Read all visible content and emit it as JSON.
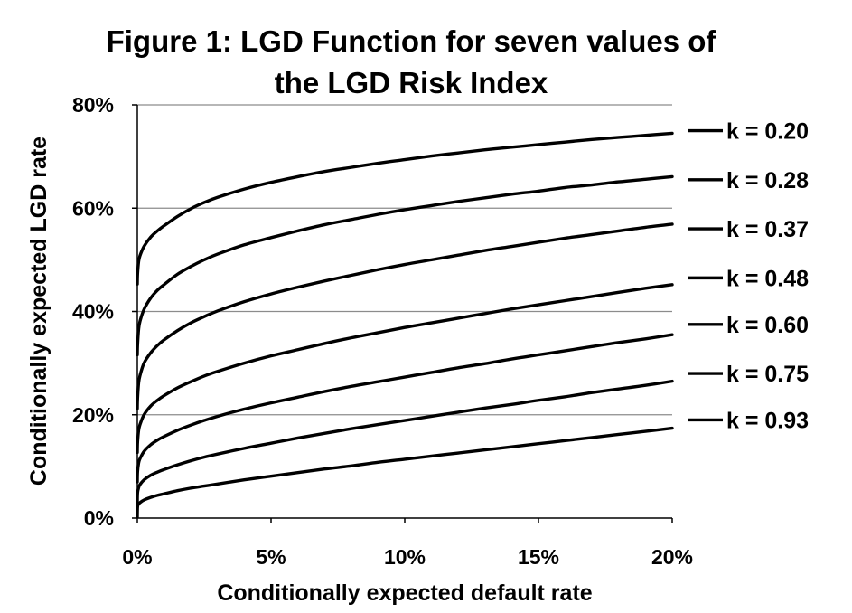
{
  "chart_data": {
    "type": "line",
    "title_lines": [
      "Figure 1: LGD Function for seven values of",
      "the LGD Risk Index"
    ],
    "xlabel": "Conditionally expected default rate",
    "ylabel": "Conditionally expected LGD rate",
    "xlim": [
      0,
      0.2
    ],
    "ylim": [
      0,
      0.8
    ],
    "x_ticks": [
      0,
      0.05,
      0.1,
      0.15,
      0.2
    ],
    "x_tick_labels": [
      "0%",
      "5%",
      "10%",
      "15%",
      "20%"
    ],
    "y_ticks": [
      0,
      0.2,
      0.4,
      0.6,
      0.8
    ],
    "y_tick_labels": [
      "0%",
      "20%",
      "40%",
      "60%",
      "80%"
    ],
    "grid": "horizontal",
    "legend_position": "right",
    "x": [
      0.0001,
      0.0005,
      0.001,
      0.0025,
      0.005,
      0.0075,
      0.01,
      0.015,
      0.02,
      0.025,
      0.03,
      0.04,
      0.05,
      0.06,
      0.07,
      0.08,
      0.09,
      0.1,
      0.11,
      0.12,
      0.13,
      0.14,
      0.15,
      0.16,
      0.17,
      0.18,
      0.19,
      0.2
    ],
    "series": [
      {
        "name": "k = 0.20",
        "label_y": 0.75,
        "values": [
          0.473,
          0.497,
          0.508,
          0.526,
          0.544,
          0.556,
          0.566,
          0.584,
          0.599,
          0.611,
          0.621,
          0.637,
          0.65,
          0.661,
          0.671,
          0.679,
          0.687,
          0.694,
          0.701,
          0.707,
          0.713,
          0.718,
          0.723,
          0.728,
          0.733,
          0.737,
          0.741,
          0.745
        ]
      },
      {
        "name": "k = 0.28",
        "label_y": 0.655,
        "values": [
          0.336,
          0.366,
          0.381,
          0.404,
          0.426,
          0.441,
          0.452,
          0.472,
          0.487,
          0.5,
          0.511,
          0.529,
          0.543,
          0.556,
          0.568,
          0.578,
          0.588,
          0.597,
          0.605,
          0.613,
          0.62,
          0.627,
          0.633,
          0.64,
          0.645,
          0.651,
          0.656,
          0.661
        ]
      },
      {
        "name": "k = 0.37",
        "label_y": 0.56,
        "values": [
          0.232,
          0.262,
          0.276,
          0.3,
          0.32,
          0.334,
          0.345,
          0.363,
          0.378,
          0.39,
          0.401,
          0.419,
          0.434,
          0.447,
          0.459,
          0.47,
          0.481,
          0.491,
          0.5,
          0.509,
          0.518,
          0.526,
          0.534,
          0.542,
          0.549,
          0.556,
          0.563,
          0.569
        ]
      },
      {
        "name": "k = 0.48",
        "label_y": 0.465,
        "values": [
          0.147,
          0.17,
          0.181,
          0.2,
          0.217,
          0.228,
          0.237,
          0.252,
          0.264,
          0.275,
          0.284,
          0.3,
          0.314,
          0.326,
          0.338,
          0.349,
          0.359,
          0.369,
          0.378,
          0.387,
          0.396,
          0.405,
          0.413,
          0.421,
          0.429,
          0.437,
          0.445,
          0.452
        ]
      },
      {
        "name": "k = 0.60",
        "label_y": 0.375,
        "values": [
          0.09,
          0.107,
          0.115,
          0.129,
          0.142,
          0.151,
          0.158,
          0.17,
          0.18,
          0.189,
          0.197,
          0.211,
          0.223,
          0.234,
          0.245,
          0.255,
          0.264,
          0.273,
          0.282,
          0.291,
          0.299,
          0.308,
          0.316,
          0.324,
          0.332,
          0.34,
          0.347,
          0.355
        ]
      },
      {
        "name": "k = 0.75",
        "label_y": 0.28,
        "values": [
          0.049,
          0.059,
          0.065,
          0.074,
          0.083,
          0.089,
          0.094,
          0.103,
          0.111,
          0.118,
          0.124,
          0.135,
          0.145,
          0.155,
          0.164,
          0.173,
          0.181,
          0.189,
          0.197,
          0.205,
          0.213,
          0.22,
          0.228,
          0.235,
          0.243,
          0.25,
          0.257,
          0.265
        ]
      },
      {
        "name": "k = 0.93",
        "label_y": 0.19,
        "values": [
          0.022,
          0.027,
          0.03,
          0.035,
          0.04,
          0.044,
          0.047,
          0.053,
          0.058,
          0.062,
          0.066,
          0.074,
          0.081,
          0.088,
          0.095,
          0.101,
          0.108,
          0.114,
          0.12,
          0.126,
          0.132,
          0.138,
          0.144,
          0.15,
          0.156,
          0.162,
          0.168,
          0.174
        ]
      }
    ]
  }
}
